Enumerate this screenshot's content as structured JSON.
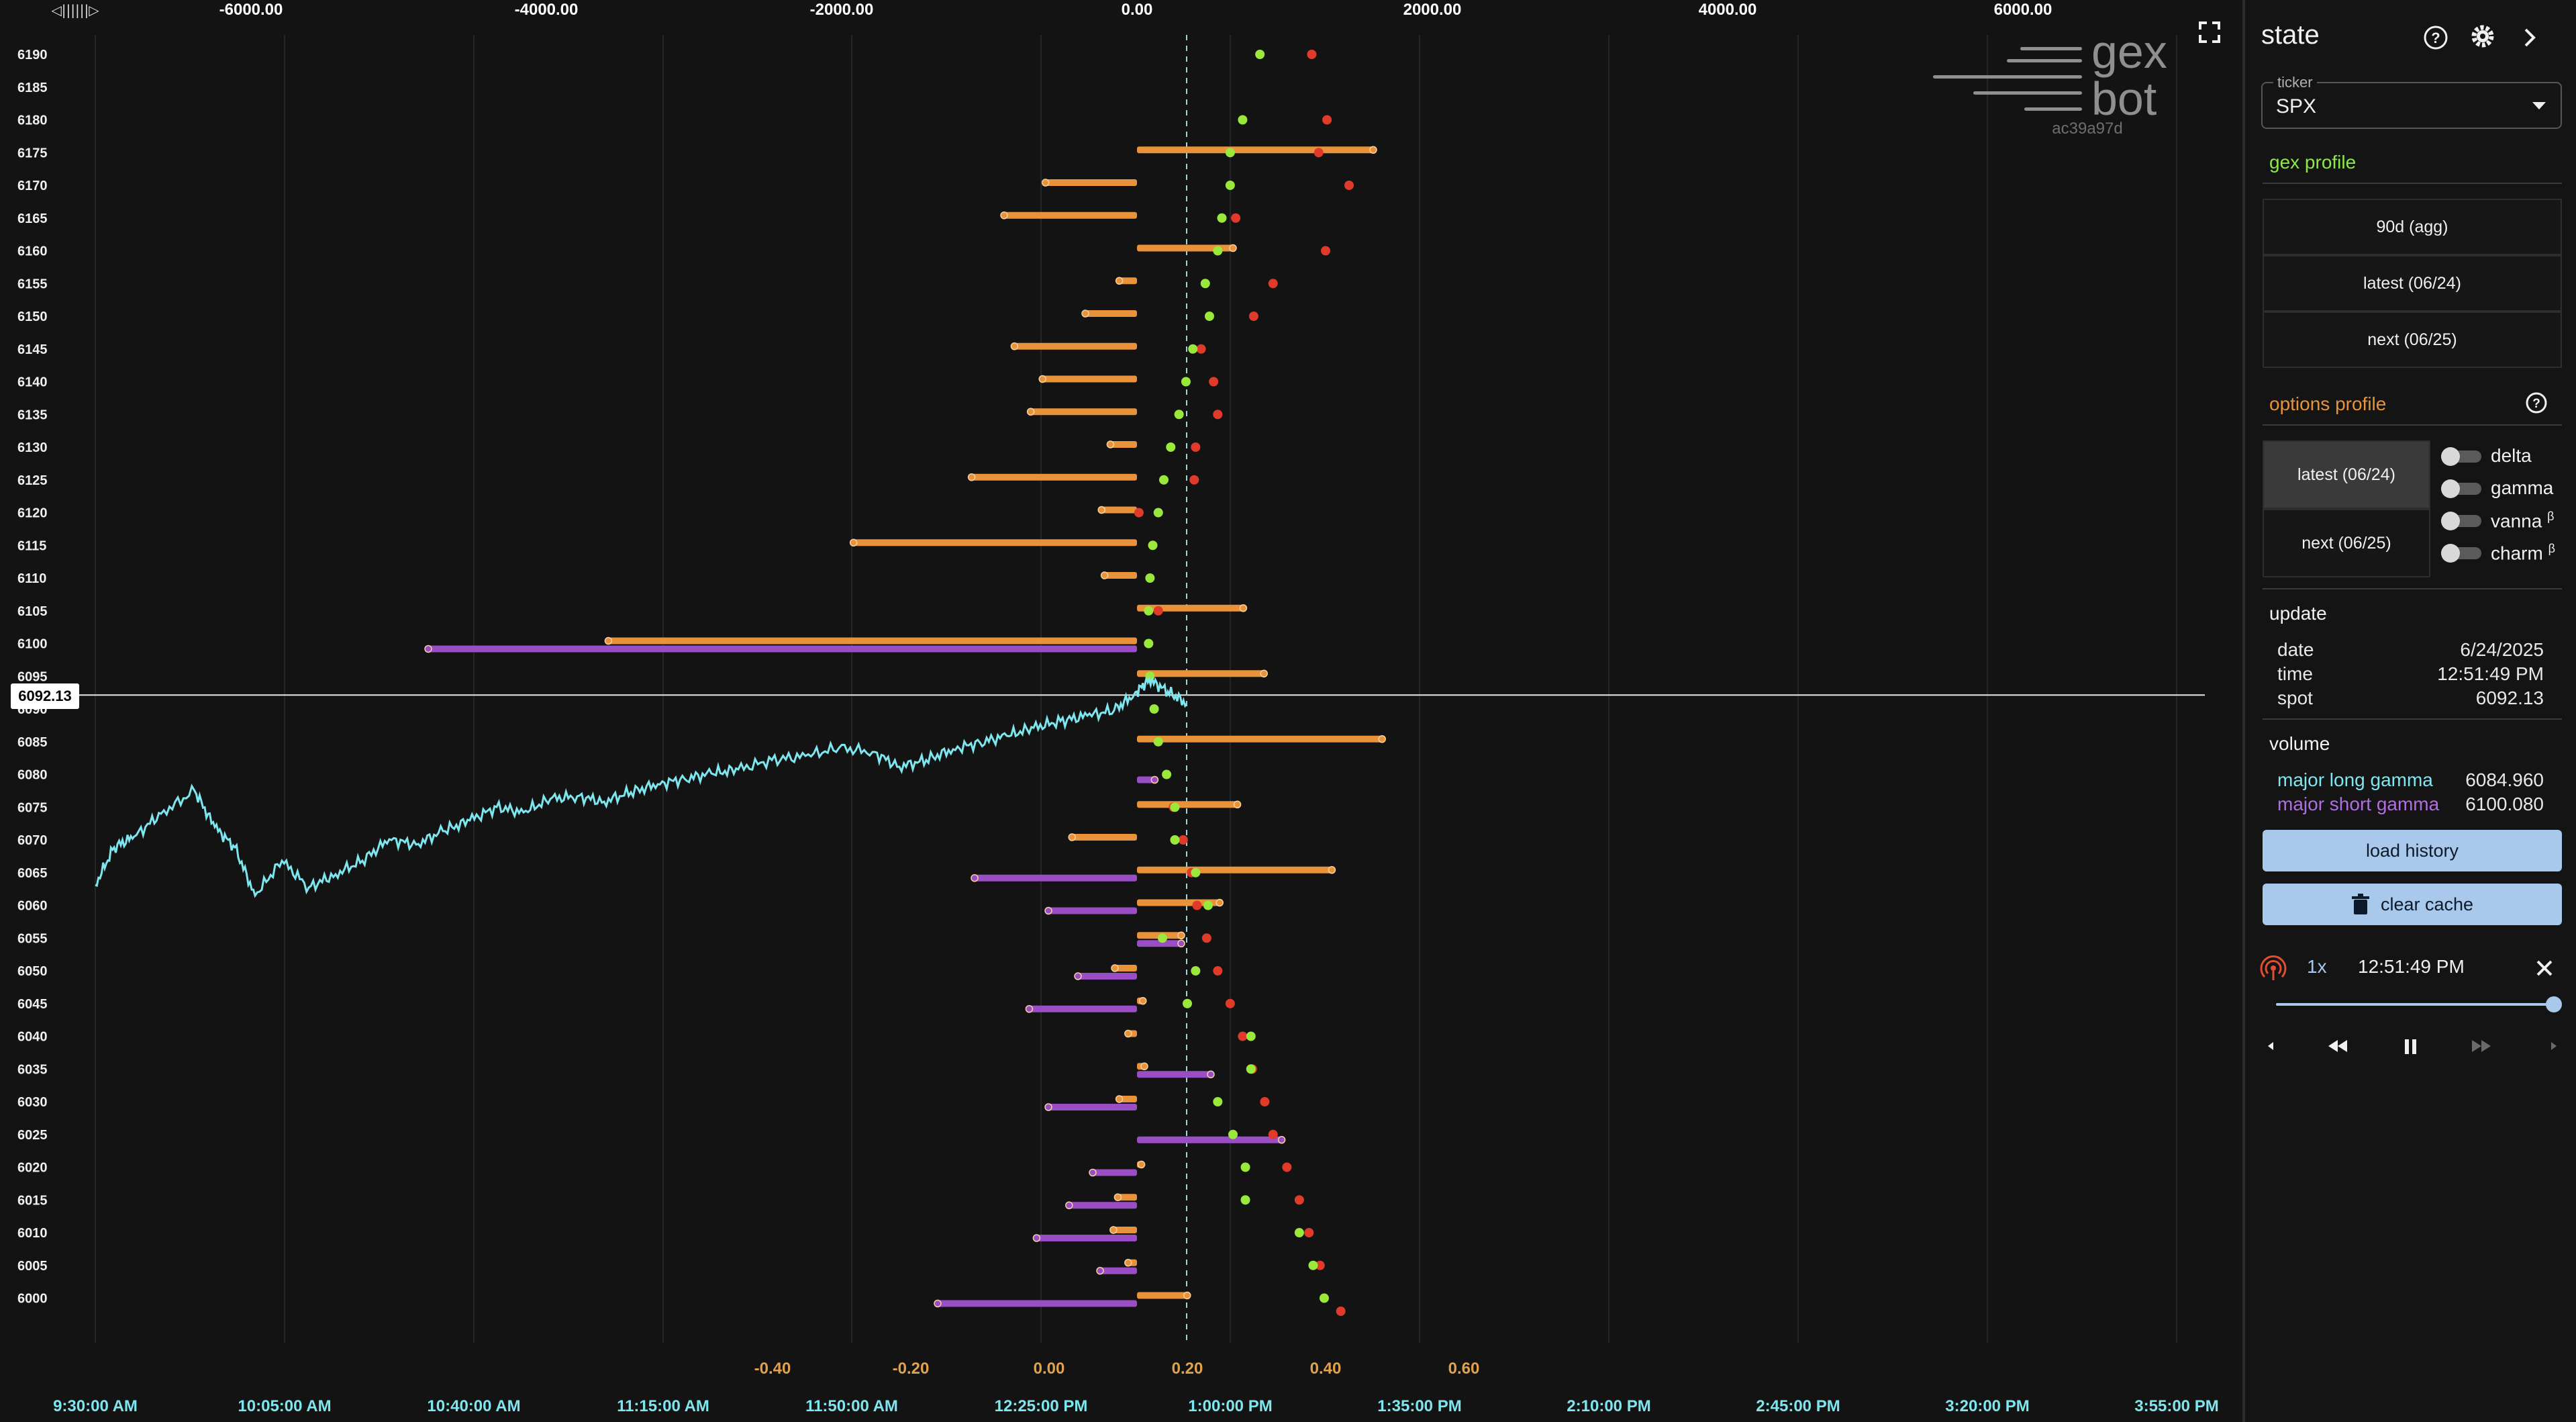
{
  "chart": {
    "top_axis_labels": [
      "-6000.00",
      "-4000.00",
      "-2000.00",
      "0.00",
      "2000.00",
      "4000.00",
      "6000.00"
    ],
    "top_axis_values": [
      -6000,
      -4000,
      -2000,
      0,
      2000,
      4000,
      6000
    ],
    "bottom_axis_labels": [
      "-0.40",
      "-0.20",
      "0.00",
      "0.20",
      "0.40",
      "0.60"
    ],
    "bottom_axis_values": [
      -0.4,
      -0.2,
      0,
      0.2,
      0.4,
      0.6
    ],
    "time_labels": [
      "9:30:00 AM",
      "10:05:00 AM",
      "10:40:00 AM",
      "11:15:00 AM",
      "11:50:00 AM",
      "12:25:00 PM",
      "1:00:00 PM",
      "1:35:00 PM",
      "2:10:00 PM",
      "2:45:00 PM",
      "3:20:00 PM",
      "3:55:00 PM"
    ],
    "strikes": [
      6190,
      6185,
      6180,
      6175,
      6170,
      6165,
      6160,
      6155,
      6150,
      6145,
      6140,
      6135,
      6130,
      6125,
      6120,
      6115,
      6110,
      6105,
      6100,
      6095,
      6090,
      6085,
      6080,
      6075,
      6070,
      6065,
      6060,
      6055,
      6050,
      6045,
      6040,
      6035,
      6030,
      6025,
      6020,
      6015,
      6010,
      6005,
      6000
    ],
    "spot_label": "6092.13",
    "spot_value": 6092.13,
    "orange_bars": [
      {
        "strike": 6175,
        "value": 1600
      },
      {
        "strike": 6170,
        "value": -620
      },
      {
        "strike": 6165,
        "value": -900
      },
      {
        "strike": 6160,
        "value": 650
      },
      {
        "strike": 6155,
        "value": -120
      },
      {
        "strike": 6150,
        "value": -350
      },
      {
        "strike": 6145,
        "value": -830
      },
      {
        "strike": 6140,
        "value": -640
      },
      {
        "strike": 6135,
        "value": -720
      },
      {
        "strike": 6130,
        "value": -180
      },
      {
        "strike": 6125,
        "value": -1120
      },
      {
        "strike": 6120,
        "value": -240
      },
      {
        "strike": 6115,
        "value": -1920
      },
      {
        "strike": 6110,
        "value": -220
      },
      {
        "strike": 6105,
        "value": 720
      },
      {
        "strike": 6100,
        "value": -3580
      },
      {
        "strike": 6095,
        "value": 860
      },
      {
        "strike": 6085,
        "value": 1660
      },
      {
        "strike": 6075,
        "value": 680
      },
      {
        "strike": 6070,
        "value": -440
      },
      {
        "strike": 6065,
        "value": 1320
      },
      {
        "strike": 6060,
        "value": 560
      },
      {
        "strike": 6055,
        "value": 300
      },
      {
        "strike": 6050,
        "value": -150
      },
      {
        "strike": 6045,
        "value": 40
      },
      {
        "strike": 6040,
        "value": -60
      },
      {
        "strike": 6035,
        "value": 50
      },
      {
        "strike": 6030,
        "value": -120
      },
      {
        "strike": 6020,
        "value": 30
      },
      {
        "strike": 6015,
        "value": -130
      },
      {
        "strike": 6010,
        "value": -160
      },
      {
        "strike": 6005,
        "value": -60
      },
      {
        "strike": 6000,
        "value": 340
      }
    ],
    "purple_bars": [
      {
        "strike": 6100,
        "value": -4800
      },
      {
        "strike": 6080,
        "value": 120
      },
      {
        "strike": 6065,
        "value": -1100
      },
      {
        "strike": 6060,
        "value": -600
      },
      {
        "strike": 6055,
        "value": 300
      },
      {
        "strike": 6050,
        "value": -400
      },
      {
        "strike": 6045,
        "value": -730
      },
      {
        "strike": 6035,
        "value": 500
      },
      {
        "strike": 6030,
        "value": -600
      },
      {
        "strike": 6025,
        "value": 980
      },
      {
        "strike": 6020,
        "value": -300
      },
      {
        "strike": 6015,
        "value": -460
      },
      {
        "strike": 6010,
        "value": -680
      },
      {
        "strike": 6005,
        "value": -250
      },
      {
        "strike": 6000,
        "value": -1350
      }
    ],
    "green_dots": [
      {
        "strike": 6190,
        "value": 0.305
      },
      {
        "strike": 6180,
        "value": 0.28
      },
      {
        "strike": 6175,
        "value": 0.262
      },
      {
        "strike": 6170,
        "value": 0.262
      },
      {
        "strike": 6165,
        "value": 0.25
      },
      {
        "strike": 6160,
        "value": 0.244
      },
      {
        "strike": 6155,
        "value": 0.226
      },
      {
        "strike": 6150,
        "value": 0.232
      },
      {
        "strike": 6145,
        "value": 0.208
      },
      {
        "strike": 6140,
        "value": 0.198
      },
      {
        "strike": 6135,
        "value": 0.188
      },
      {
        "strike": 6130,
        "value": 0.176
      },
      {
        "strike": 6125,
        "value": 0.166
      },
      {
        "strike": 6120,
        "value": 0.158
      },
      {
        "strike": 6115,
        "value": 0.15
      },
      {
        "strike": 6110,
        "value": 0.146
      },
      {
        "strike": 6105,
        "value": 0.144
      },
      {
        "strike": 6100,
        "value": 0.144
      },
      {
        "strike": 6095,
        "value": 0.146
      },
      {
        "strike": 6090,
        "value": 0.152
      },
      {
        "strike": 6085,
        "value": 0.158
      },
      {
        "strike": 6080,
        "value": 0.17
      },
      {
        "strike": 6075,
        "value": 0.182
      },
      {
        "strike": 6070,
        "value": 0.182
      },
      {
        "strike": 6065,
        "value": 0.212
      },
      {
        "strike": 6060,
        "value": 0.23
      },
      {
        "strike": 6055,
        "value": 0.164
      },
      {
        "strike": 6050,
        "value": 0.212
      },
      {
        "strike": 6045,
        "value": 0.2
      },
      {
        "strike": 6040,
        "value": 0.292
      },
      {
        "strike": 6035,
        "value": 0.292
      },
      {
        "strike": 6030,
        "value": 0.244
      },
      {
        "strike": 6025,
        "value": 0.266
      },
      {
        "strike": 6020,
        "value": 0.284
      },
      {
        "strike": 6015,
        "value": 0.284
      },
      {
        "strike": 6010,
        "value": 0.362
      },
      {
        "strike": 6005,
        "value": 0.382
      },
      {
        "strike": 6000,
        "value": 0.398
      }
    ],
    "red_dots": [
      {
        "strike": 6190,
        "value": 0.38
      },
      {
        "strike": 6180,
        "value": 0.402
      },
      {
        "strike": 6175,
        "value": 0.39
      },
      {
        "strike": 6170,
        "value": 0.434
      },
      {
        "strike": 6165,
        "value": 0.27
      },
      {
        "strike": 6160,
        "value": 0.4
      },
      {
        "strike": 6155,
        "value": 0.324
      },
      {
        "strike": 6150,
        "value": 0.296
      },
      {
        "strike": 6145,
        "value": 0.22
      },
      {
        "strike": 6140,
        "value": 0.238
      },
      {
        "strike": 6135,
        "value": 0.244
      },
      {
        "strike": 6130,
        "value": 0.212
      },
      {
        "strike": 6125,
        "value": 0.21
      },
      {
        "strike": 6120,
        "value": 0.13
      },
      {
        "strike": 6105,
        "value": 0.158
      },
      {
        "strike": 6075,
        "value": 0.18
      },
      {
        "strike": 6070,
        "value": 0.194
      },
      {
        "strike": 6065,
        "value": 0.206
      },
      {
        "strike": 6060,
        "value": 0.214
      },
      {
        "strike": 6055,
        "value": 0.228
      },
      {
        "strike": 6050,
        "value": 0.244
      },
      {
        "strike": 6045,
        "value": 0.262
      },
      {
        "strike": 6040,
        "value": 0.28
      },
      {
        "strike": 6035,
        "value": 0.294
      },
      {
        "strike": 6030,
        "value": 0.312
      },
      {
        "strike": 6025,
        "value": 0.324
      },
      {
        "strike": 6020,
        "value": 0.344
      },
      {
        "strike": 6015,
        "value": 0.362
      },
      {
        "strike": 6010,
        "value": 0.376
      },
      {
        "strike": 6005,
        "value": 0.392
      },
      {
        "strike": 5998,
        "value": 0.422
      }
    ]
  },
  "logo": {
    "top": "gex",
    "bottom": "bot",
    "hash": "ac39a97d"
  },
  "panel": {
    "title": "state",
    "ticker_label": "ticker",
    "ticker_value": "SPX",
    "gex_profile_title": "gex profile",
    "gex_buttons": [
      "90d (agg)",
      "latest (06/24)",
      "next (06/25)"
    ],
    "options_profile_title": "options profile",
    "option_buttons": [
      "latest (06/24)",
      "next (06/25)"
    ],
    "toggles": [
      "delta",
      "gamma",
      "vanna",
      "charm"
    ],
    "beta": "β",
    "update_title": "update",
    "update": [
      {
        "key": "date",
        "value": "6/24/2025"
      },
      {
        "key": "time",
        "value": "12:51:49 PM"
      },
      {
        "key": "spot",
        "value": "6092.13"
      }
    ],
    "volume_title": "volume",
    "volume": [
      {
        "key": "major long gamma",
        "value": "6084.960"
      },
      {
        "key": "major short gamma",
        "value": "6100.080"
      }
    ],
    "load_history": "load history",
    "clear_cache": "clear cache",
    "playback_speed": "1x",
    "playback_time": "12:51:49 PM",
    "playback_position": 1.0
  },
  "colors": {
    "orange": "#e8923a",
    "purple": "#9a4ec6",
    "green": "#9be83c",
    "red": "#e03a2a",
    "cyan": "#7ee6ee",
    "gex_title": "#8ee84a",
    "options_title": "#e8923a",
    "long_gamma": "#7ee6ee",
    "short_gamma": "#b06ee0",
    "top_axis": "#ffffff",
    "bottom_axis": "#e0a24a",
    "time_axis": "#7ee6ee"
  }
}
